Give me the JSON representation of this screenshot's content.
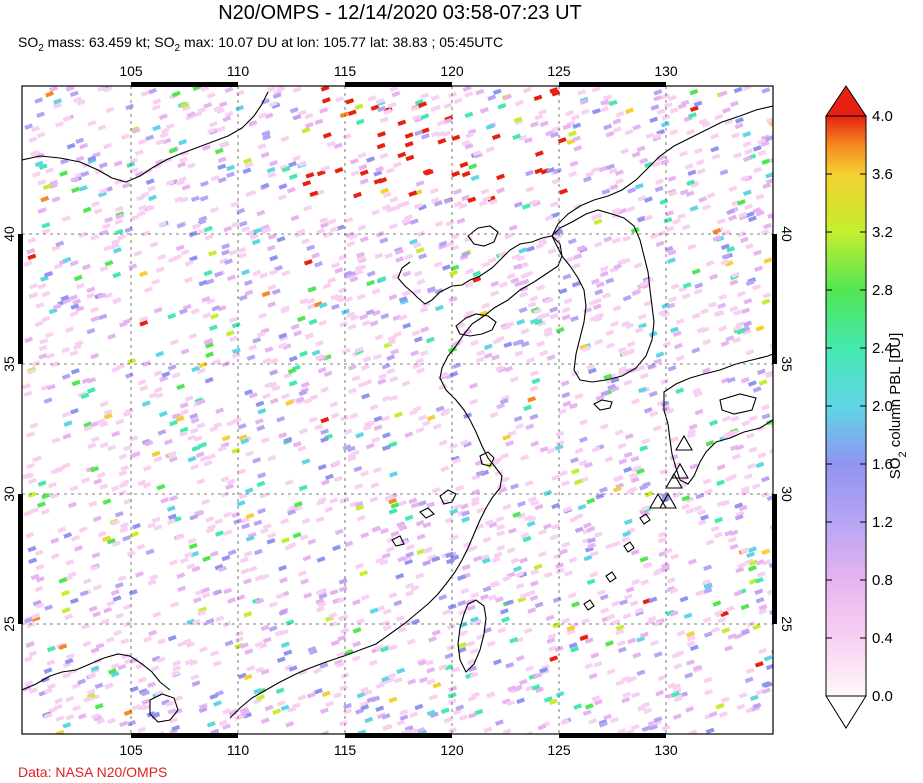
{
  "header": {
    "title": "N20/OMPS - 12/14/2020 03:58-07:23 UT",
    "stats_prefix": "SO",
    "stats_sub1": "2",
    "stats_mid": " mass: 63.459 kt; SO",
    "stats_sub2": "2",
    "stats_suffix": " max: 10.07 DU at lon: 105.77 lat: 38.83 ; 05:45UTC"
  },
  "map": {
    "lon_range": [
      100,
      135
    ],
    "lat_range": [
      20,
      45
    ],
    "lon_ticks": [
      "105",
      "110",
      "115",
      "120",
      "125",
      "130"
    ],
    "lat_ticks": [
      "25",
      "30",
      "35",
      "40"
    ],
    "volcano_markers": 5
  },
  "colorbar": {
    "label_prefix": "SO",
    "label_sub": "2",
    "label_suffix": " column PBL [DU]",
    "ticks": [
      "0.0",
      "0.4",
      "0.8",
      "1.2",
      "1.6",
      "2.0",
      "2.4",
      "2.8",
      "3.2",
      "3.6",
      "4.0"
    ],
    "colors": [
      "#fff8f8",
      "#f7d0f2",
      "#e6b4f0",
      "#b8a4f4",
      "#8f94f2",
      "#5fd6e6",
      "#44e8b0",
      "#52e652",
      "#c4ee30",
      "#f4d030",
      "#f48a22",
      "#e82010"
    ]
  },
  "footer": {
    "credit": "Data: NASA N20/OMPS"
  }
}
